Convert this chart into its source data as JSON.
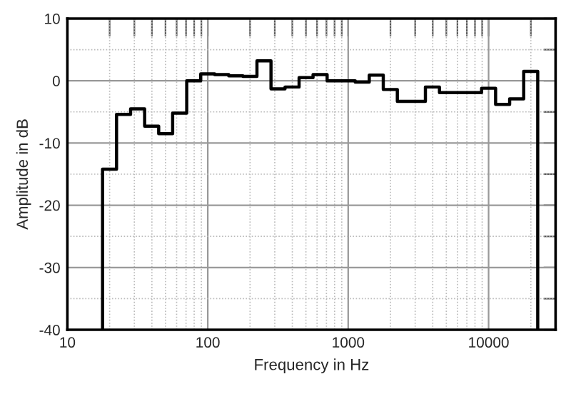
{
  "chart_data": {
    "type": "step",
    "xlabel": "Frequency in Hz",
    "ylabel": "Amplitude in dB",
    "log": "x",
    "grid": true,
    "color": "#000000",
    "x": [
      17.8,
      17.8,
      22.4,
      28.2,
      35.5,
      44.7,
      56.2,
      70.8,
      89.1,
      112,
      141,
      178,
      224,
      282,
      355,
      447,
      562,
      708,
      891,
      1122,
      1413,
      1778,
      2239,
      2818,
      3548,
      4467,
      5623,
      7079,
      8913,
      11220,
      14125,
      17783,
      22387,
      22387
    ],
    "values": [
      -40,
      -14.2,
      -5.4,
      -4.5,
      -7.3,
      -8.5,
      -5.2,
      0,
      1.1,
      1.0,
      0.8,
      0.7,
      3.2,
      -1.3,
      -1.0,
      0.5,
      1.0,
      0,
      0,
      -0.2,
      0.9,
      -1.4,
      -3.3,
      -3.3,
      -1.0,
      -1.9,
      -1.9,
      -1.9,
      -1.2,
      -3.8,
      -2.9,
      1.5,
      1.5,
      -40
    ],
    "xlim": [
      10,
      30000
    ],
    "ylim": [
      -40,
      10
    ],
    "xticks": [
      10,
      {
        "value": 20,
        "label": null
      },
      {
        "value": 30,
        "label": null
      },
      {
        "value": 40,
        "label": null
      },
      {
        "value": 50,
        "label": null
      },
      {
        "value": 60,
        "label": null
      },
      {
        "value": 70,
        "label": null
      },
      {
        "value": 80,
        "label": null
      },
      {
        "value": 90,
        "label": null
      },
      100,
      {
        "value": 200,
        "label": null
      },
      {
        "value": 300,
        "label": null
      },
      {
        "value": 400,
        "label": null
      },
      {
        "value": 500,
        "label": null
      },
      {
        "value": 600,
        "label": null
      },
      {
        "value": 700,
        "label": null
      },
      {
        "value": 800,
        "label": null
      },
      {
        "value": 900,
        "label": null
      },
      1000,
      {
        "value": 2000,
        "label": null
      },
      {
        "value": 3000,
        "label": null
      },
      {
        "value": 4000,
        "label": null
      },
      {
        "value": 5000,
        "label": null
      },
      {
        "value": 6000,
        "label": null
      },
      {
        "value": 7000,
        "label": null
      },
      {
        "value": 8000,
        "label": null
      },
      {
        "value": 9000,
        "label": null
      },
      10000,
      {
        "value": 20000,
        "label": null
      }
    ],
    "yticks": [
      -40,
      {
        "value": -35,
        "label": null
      },
      -30,
      {
        "value": -25,
        "label": null
      },
      -20,
      {
        "value": -15,
        "label": null
      },
      -10,
      {
        "value": -5,
        "label": null
      },
      0,
      {
        "value": 5,
        "label": null
      },
      10
    ]
  }
}
